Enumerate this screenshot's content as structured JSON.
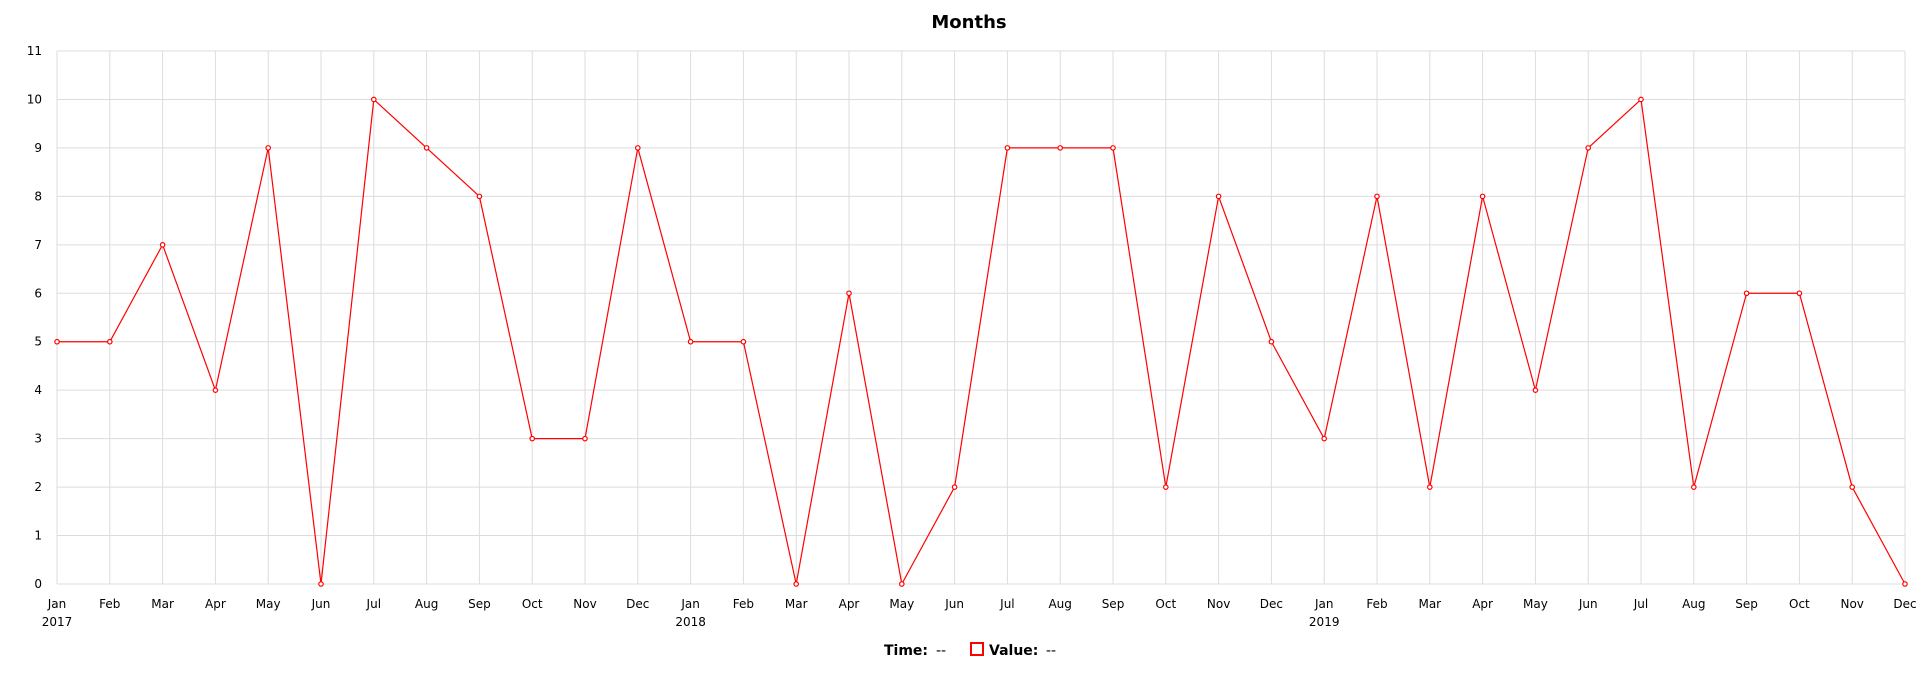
{
  "chart_data": {
    "type": "line",
    "title": "Months",
    "xlabel": "",
    "ylabel": "",
    "ylim": [
      0,
      11
    ],
    "y_ticks": [
      "0",
      "1",
      "2",
      "3",
      "4",
      "5",
      "6",
      "7",
      "8",
      "9",
      "10",
      "11"
    ],
    "grid": true,
    "series_color": "#ff0000",
    "month_labels": [
      "Jan",
      "Feb",
      "Mar",
      "Apr",
      "May",
      "Jun",
      "Jul",
      "Aug",
      "Sep",
      "Oct",
      "Nov",
      "Dec"
    ],
    "year_labels": [
      "2017",
      "2018",
      "2019"
    ],
    "x": [
      "2017-01",
      "2017-02",
      "2017-03",
      "2017-04",
      "2017-05",
      "2017-06",
      "2017-07",
      "2017-08",
      "2017-09",
      "2017-10",
      "2017-11",
      "2017-12",
      "2018-01",
      "2018-02",
      "2018-03",
      "2018-04",
      "2018-05",
      "2018-06",
      "2018-07",
      "2018-08",
      "2018-09",
      "2018-10",
      "2018-11",
      "2018-12",
      "2019-01",
      "2019-02",
      "2019-03",
      "2019-04",
      "2019-05",
      "2019-06",
      "2019-07",
      "2019-08",
      "2019-09",
      "2019-10",
      "2019-11",
      "2019-12"
    ],
    "values": [
      5,
      5,
      7,
      4,
      9,
      0,
      10,
      9,
      8,
      3,
      3,
      9,
      5,
      5,
      0,
      6,
      0,
      2,
      9,
      9,
      9,
      2,
      8,
      5,
      3,
      8,
      2,
      8,
      4,
      9,
      10,
      2,
      6,
      6,
      2,
      0
    ]
  },
  "legend": {
    "time_label": "Time:",
    "time_value": "--",
    "value_label": "Value:",
    "value_value": "--",
    "swatch_color": "#ff0000"
  }
}
